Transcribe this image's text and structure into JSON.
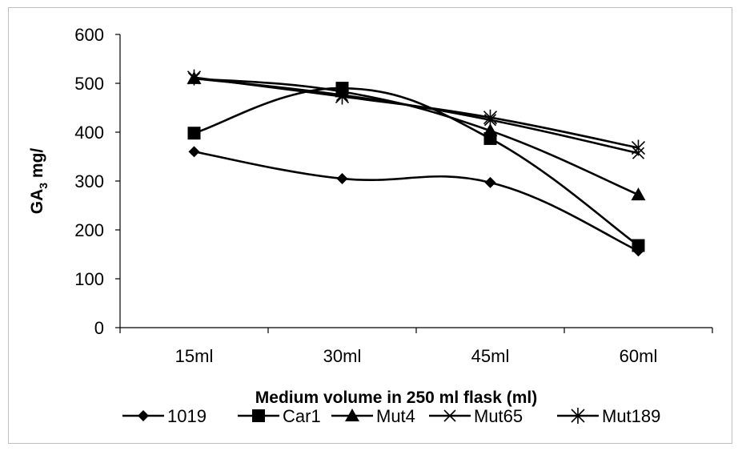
{
  "chart_data": {
    "type": "line",
    "title": "",
    "xlabel": "Medium volume in 250 ml flask (ml)",
    "ylabel": "GA",
    "ylabel_sub": "3",
    "ylabel_suffix": " mg/",
    "categories": [
      "15ml",
      "30ml",
      "45ml",
      "60ml"
    ],
    "ylim": [
      0,
      600
    ],
    "yticks": [
      "0",
      "100",
      "200",
      "300",
      "400",
      "500",
      "600"
    ],
    "grid": false,
    "legend_position": "bottom",
    "series": [
      {
        "name": "1019",
        "marker": "diamond",
        "values": [
          360,
          305,
          297,
          157
        ]
      },
      {
        "name": "Car1",
        "marker": "square",
        "values": [
          398,
          490,
          387,
          168
        ]
      },
      {
        "name": "Mut4",
        "marker": "triangle",
        "values": [
          510,
          483,
          403,
          272
        ]
      },
      {
        "name": "Mut65",
        "marker": "x",
        "values": [
          510,
          476,
          425,
          357
        ]
      },
      {
        "name": "Mut189",
        "marker": "star",
        "values": [
          512,
          473,
          430,
          368
        ]
      }
    ],
    "colors": {
      "line": "#000000",
      "axis": "#000000",
      "border": "#bfbfbf"
    }
  }
}
